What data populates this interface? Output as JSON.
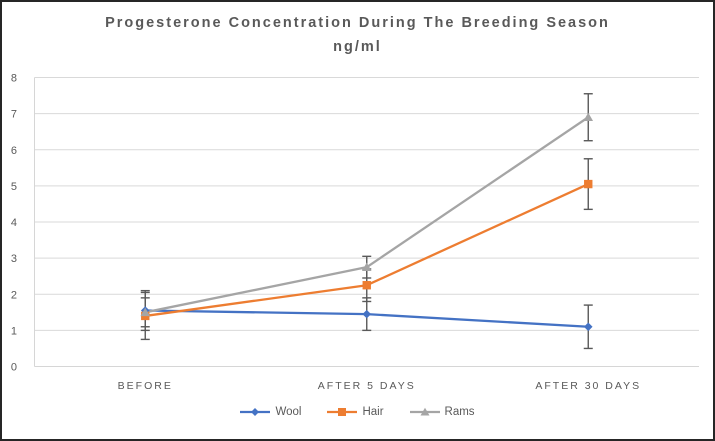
{
  "chart_data": {
    "type": "line",
    "title": "Progesterone Concentration During The Breeding Season",
    "subtitle": "ng/ml",
    "categories": [
      "BEFORE",
      "AFTER 5 DAYS",
      "AFTER 30 DAYS"
    ],
    "series": [
      {
        "name": "Wool",
        "color": "#4472C4",
        "marker": "diamond",
        "values": [
          1.55,
          1.45,
          1.1
        ],
        "error_bars": [
          0.55,
          0.45,
          0.6
        ]
      },
      {
        "name": "Hair",
        "color": "#ED7D31",
        "marker": "square",
        "values": [
          1.4,
          2.25,
          5.05
        ],
        "error_bars": [
          0.65,
          0.45,
          0.7
        ]
      },
      {
        "name": "Rams",
        "color": "#A5A5A5",
        "marker": "triangle",
        "values": [
          1.5,
          2.75,
          6.9
        ],
        "error_bars": [
          0.4,
          0.3,
          0.65
        ]
      }
    ],
    "xlabel": "",
    "ylabel": "",
    "ylim": [
      0,
      8
    ],
    "yticks": [
      0,
      1,
      2,
      3,
      4,
      5,
      6,
      7,
      8
    ],
    "grid": true,
    "legend_position": "bottom",
    "colors": {
      "gridline": "#D9D9D9",
      "axis_line": "#D6D6D6",
      "axis_text": "#595959",
      "title_text": "#595959",
      "error_bar": "#595959",
      "frame_border": "#262626",
      "background": "#FFFFFF"
    }
  }
}
